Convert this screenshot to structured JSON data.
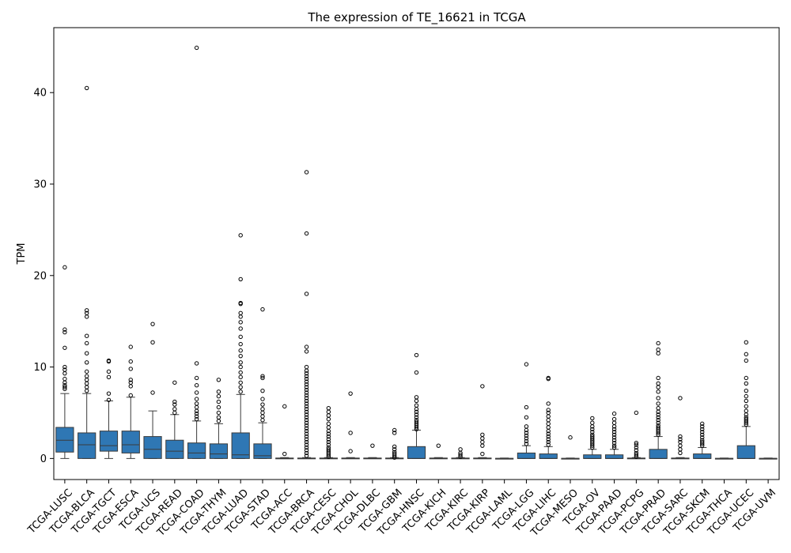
{
  "chart_data": {
    "type": "box",
    "title": "The expression of TE_16621 in TCGA",
    "xlabel": "",
    "ylabel": "TPM",
    "ylim": [
      -2.3,
      47.1
    ],
    "yticks": [
      0,
      10,
      20,
      30,
      40
    ],
    "grid": false,
    "legend": "none",
    "box_color": "#2f77b4",
    "categories": [
      "TCGA-LUSC",
      "TCGA-BLCA",
      "TCGA-TGCT",
      "TCGA-ESCA",
      "TCGA-UCS",
      "TCGA-READ",
      "TCGA-COAD",
      "TCGA-THYM",
      "TCGA-LUAD",
      "TCGA-STAD",
      "TCGA-ACC",
      "TCGA-BRCA",
      "TCGA-CESC",
      "TCGA-CHOL",
      "TCGA-DLBC",
      "TCGA-GBM",
      "TCGA-HNSC",
      "TCGA-KICH",
      "TCGA-KIRC",
      "TCGA-KIRP",
      "TCGA-LAML",
      "TCGA-LGG",
      "TCGA-LIHC",
      "TCGA-MESO",
      "TCGA-OV",
      "TCGA-PAAD",
      "TCGA-PCPG",
      "TCGA-PRAD",
      "TCGA-SARC",
      "TCGA-SKCM",
      "TCGA-THCA",
      "TCGA-UCEC",
      "TCGA-UVM"
    ],
    "boxes": [
      {
        "whislo": 0,
        "q1": 0.7,
        "med": 2.0,
        "q3": 3.4,
        "whishi": 7.1,
        "fliers": [
          7.6,
          7.8,
          8.0,
          8.3,
          8.7,
          9.3,
          9.7,
          10.0,
          12.1,
          13.8,
          14.1,
          20.9
        ]
      },
      {
        "whislo": 0,
        "q1": 0,
        "med": 1.5,
        "q3": 2.8,
        "whislo2": 0,
        "whishi": 7.1,
        "fliers": [
          7.4,
          7.8,
          8.2,
          8.6,
          9.0,
          9.5,
          10.5,
          11.5,
          12.6,
          13.4,
          15.5,
          15.9,
          16.2,
          40.5
        ]
      },
      {
        "whislo": 0,
        "q1": 0.8,
        "med": 1.4,
        "q3": 3.0,
        "whishi": 6.3,
        "fliers": [
          6.4,
          7.1,
          8.9,
          9.5,
          10.6,
          10.7
        ]
      },
      {
        "whislo": 0,
        "q1": 0.6,
        "med": 1.5,
        "q3": 3.0,
        "whishi": 6.7,
        "fliers": [
          6.9,
          7.9,
          8.3,
          8.6,
          9.8,
          10.6,
          12.2
        ]
      },
      {
        "whislo": 0,
        "q1": 0,
        "med": 1.0,
        "q3": 2.4,
        "whishi": 5.2,
        "fliers": [
          7.2,
          12.7,
          14.7
        ]
      },
      {
        "whislo": 0,
        "q1": 0,
        "med": 0.8,
        "q3": 2.0,
        "whishi": 4.8,
        "fliers": [
          5.0,
          5.4,
          5.9,
          6.2,
          8.3
        ]
      },
      {
        "whislo": 0,
        "q1": 0,
        "med": 0.6,
        "q3": 1.7,
        "whishi": 4.1,
        "fliers": [
          4.3,
          4.6,
          4.9,
          5.2,
          5.6,
          6.0,
          6.5,
          7.2,
          8.0,
          8.8,
          10.4,
          44.9
        ]
      },
      {
        "whislo": 0,
        "q1": 0,
        "med": 0.5,
        "q3": 1.6,
        "whishi": 3.8,
        "fliers": [
          4.1,
          4.5,
          5.0,
          5.6,
          6.2,
          6.8,
          7.3,
          8.6
        ]
      },
      {
        "whislo": 0,
        "q1": 0,
        "med": 0.4,
        "q3": 2.8,
        "whishi": 7.0,
        "fliers": [
          7.3,
          7.8,
          8.3,
          8.9,
          9.4,
          10.0,
          10.5,
          11.2,
          11.8,
          12.5,
          13.3,
          14.2,
          14.9,
          15.5,
          15.9,
          16.9,
          17.0,
          19.6,
          24.4
        ]
      },
      {
        "whislo": 0,
        "q1": 0,
        "med": 0.3,
        "q3": 1.6,
        "whishi": 3.9,
        "fliers": [
          4.2,
          4.6,
          5.0,
          5.4,
          5.9,
          6.5,
          7.4,
          8.8,
          9.0,
          16.3
        ]
      },
      {
        "whislo": 0,
        "q1": 0,
        "med": 0,
        "q3": 0.05,
        "whishi": 0.1,
        "fliers": [
          0.5,
          5.7
        ]
      },
      {
        "whislo": 0,
        "q1": 0,
        "med": 0,
        "q3": 0.05,
        "whishi": 0.1,
        "fliers": [
          0.3,
          0.6,
          0.9,
          1.2,
          1.5,
          1.8,
          2.1,
          2.4,
          2.7,
          3.0,
          3.3,
          3.6,
          3.9,
          4.2,
          4.5,
          4.8,
          5.1,
          5.4,
          5.7,
          6.0,
          6.3,
          6.6,
          6.9,
          7.2,
          7.5,
          7.8,
          8.1,
          8.4,
          8.7,
          9.0,
          9.3,
          9.6,
          10.0,
          11.7,
          12.2,
          18.0,
          24.6,
          31.3
        ]
      },
      {
        "whislo": 0,
        "q1": 0,
        "med": 0,
        "q3": 0.05,
        "whishi": 0.1,
        "fliers": [
          0.2,
          0.4,
          0.6,
          0.8,
          1.0,
          1.2,
          1.5,
          1.8,
          2.1,
          2.4,
          2.7,
          3.0,
          3.4,
          3.8,
          4.3,
          4.7,
          5.1,
          5.5
        ]
      },
      {
        "whislo": 0,
        "q1": 0,
        "med": 0,
        "q3": 0.05,
        "whishi": 0.1,
        "fliers": [
          0.8,
          2.8,
          7.1
        ]
      },
      {
        "whislo": 0,
        "q1": 0,
        "med": 0,
        "q3": 0.05,
        "whishi": 0.1,
        "fliers": [
          1.4
        ]
      },
      {
        "whislo": 0,
        "q1": 0,
        "med": 0,
        "q3": 0.05,
        "whishi": 0.1,
        "fliers": [
          0.1,
          0.3,
          0.5,
          0.7,
          1.0,
          1.3,
          2.8,
          3.1
        ]
      },
      {
        "whislo": 0,
        "q1": 0,
        "med": 0,
        "q3": 1.3,
        "whishi": 3.1,
        "fliers": [
          3.2,
          3.4,
          3.6,
          3.8,
          4.0,
          4.2,
          4.5,
          4.8,
          5.1,
          5.4,
          5.8,
          6.3,
          6.7,
          9.4,
          11.3
        ]
      },
      {
        "whislo": 0,
        "q1": 0,
        "med": 0,
        "q3": 0.05,
        "whishi": 0.1,
        "fliers": [
          1.4
        ]
      },
      {
        "whislo": 0,
        "q1": 0,
        "med": 0,
        "q3": 0.05,
        "whishi": 0.1,
        "fliers": [
          0.2,
          0.4,
          0.6,
          1.0
        ]
      },
      {
        "whislo": 0,
        "q1": 0,
        "med": 0,
        "q3": 0.05,
        "whishi": 0.1,
        "fliers": [
          0.5,
          1.4,
          1.8,
          2.2,
          2.6,
          7.9
        ]
      },
      {
        "whislo": 0,
        "q1": 0,
        "med": 0,
        "q3": 0.02,
        "whishi": 0.05,
        "fliers": []
      },
      {
        "whislo": 0,
        "q1": 0,
        "med": 0,
        "q3": 0.6,
        "whishi": 1.4,
        "fliers": [
          1.6,
          1.9,
          2.2,
          2.5,
          2.8,
          3.1,
          3.5,
          4.5,
          5.6,
          10.3
        ]
      },
      {
        "whislo": 0,
        "q1": 0,
        "med": 0,
        "q3": 0.5,
        "whishi": 1.3,
        "fliers": [
          1.5,
          1.8,
          2.1,
          2.4,
          2.7,
          3.0,
          3.4,
          3.8,
          4.2,
          4.6,
          5.0,
          5.3,
          6.0,
          8.7,
          8.8
        ]
      },
      {
        "whislo": 0,
        "q1": 0,
        "med": 0,
        "q3": 0.02,
        "whishi": 0.05,
        "fliers": [
          2.3
        ]
      },
      {
        "whislo": 0,
        "q1": 0,
        "med": 0,
        "q3": 0.4,
        "whishi": 1.0,
        "fliers": [
          1.2,
          1.4,
          1.6,
          1.8,
          2.0,
          2.2,
          2.4,
          2.6,
          2.9,
          3.2,
          3.5,
          3.9,
          4.4
        ]
      },
      {
        "whislo": 0,
        "q1": 0,
        "med": 0,
        "q3": 0.4,
        "whishi": 1.0,
        "fliers": [
          1.2,
          1.4,
          1.7,
          2.0,
          2.3,
          2.6,
          2.9,
          3.2,
          3.5,
          3.9,
          4.3,
          4.9
        ]
      },
      {
        "whislo": 0,
        "q1": 0,
        "med": 0,
        "q3": 0.05,
        "whishi": 0.1,
        "fliers": [
          0.2,
          0.4,
          0.6,
          0.9,
          1.2,
          1.5,
          1.7,
          5.0
        ]
      },
      {
        "whislo": 0,
        "q1": 0,
        "med": 0,
        "q3": 1.0,
        "whishi": 2.4,
        "fliers": [
          2.6,
          2.8,
          3.0,
          3.2,
          3.4,
          3.6,
          3.9,
          4.2,
          4.5,
          4.8,
          5.1,
          5.5,
          6.0,
          6.6,
          7.3,
          7.8,
          8.2,
          8.8,
          11.5,
          11.9,
          12.6
        ]
      },
      {
        "whislo": 0,
        "q1": 0,
        "med": 0,
        "q3": 0.05,
        "whishi": 0.1,
        "fliers": [
          0.6,
          1.0,
          1.4,
          1.8,
          2.1,
          2.4,
          6.6
        ]
      },
      {
        "whislo": 0,
        "q1": 0,
        "med": 0,
        "q3": 0.5,
        "whishi": 1.2,
        "fliers": [
          1.4,
          1.6,
          1.8,
          2.0,
          2.3,
          2.6,
          2.9,
          3.2,
          3.5,
          3.8
        ]
      },
      {
        "whislo": 0,
        "q1": 0,
        "med": 0,
        "q3": 0.02,
        "whishi": 0.05,
        "fliers": []
      },
      {
        "whislo": 0,
        "q1": 0,
        "med": 0,
        "q3": 1.4,
        "whishi": 3.5,
        "fliers": [
          3.7,
          3.9,
          4.1,
          4.3,
          4.5,
          4.8,
          5.2,
          5.7,
          6.3,
          6.8,
          7.4,
          8.2,
          8.8,
          10.7,
          11.4,
          12.7
        ]
      },
      {
        "whislo": 0,
        "q1": 0,
        "med": 0,
        "q3": 0.02,
        "whishi": 0.05,
        "fliers": []
      }
    ]
  }
}
